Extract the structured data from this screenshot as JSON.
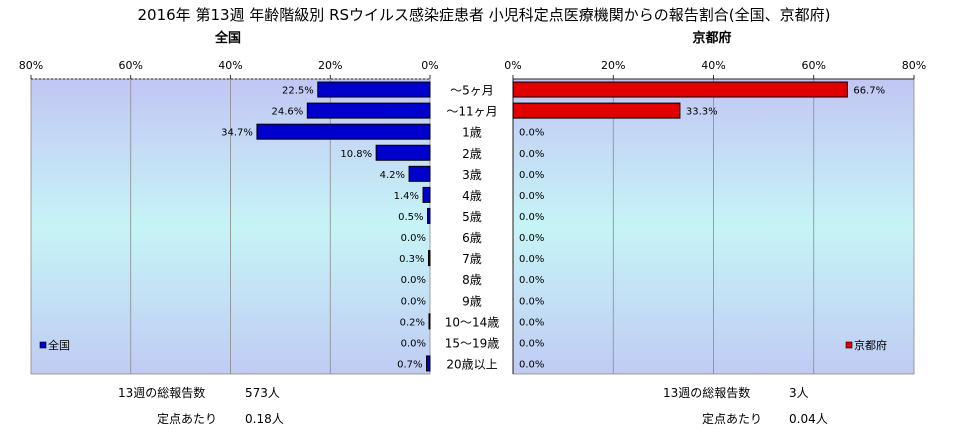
{
  "title": "2016年 第13週 年齢階級別 RSウイルス感染症患者 小児科定点医療機関からの報告割合(全国、京都府)",
  "chart_data": [
    {
      "type": "bar",
      "orientation": "horizontal",
      "title": "全国",
      "xlim": [
        0,
        80
      ],
      "x_direction": "reversed",
      "tick_labels": [
        "80%",
        "60%",
        "40%",
        "20%",
        "0%"
      ],
      "legend": "全国",
      "legend_position": "bottom-left",
      "color": "#0000CC",
      "grid": true,
      "categories": [
        "～5ヶ月",
        "～11ヶ月",
        "1歳",
        "2歳",
        "3歳",
        "4歳",
        "5歳",
        "6歳",
        "7歳",
        "8歳",
        "9歳",
        "10～14歳",
        "15～19歳",
        "20歳以上"
      ],
      "values": [
        22.5,
        24.6,
        34.7,
        10.8,
        4.2,
        1.4,
        0.5,
        0.0,
        0.3,
        0.0,
        0.0,
        0.2,
        0.0,
        0.7
      ],
      "labels": [
        "22.5%",
        "24.6%",
        "34.7%",
        "10.8%",
        "4.2%",
        "1.4%",
        "0.5%",
        "0.0%",
        "0.3%",
        "0.0%",
        "0.0%",
        "0.2%",
        "0.0%",
        "0.7%"
      ]
    },
    {
      "type": "bar",
      "orientation": "horizontal",
      "title": "京都府",
      "xlim": [
        0,
        80
      ],
      "tick_labels": [
        "0%",
        "20%",
        "40%",
        "60%",
        "80%"
      ],
      "legend": "京都府",
      "legend_position": "bottom-right",
      "color": "#E00000",
      "grid": true,
      "categories": [
        "～5ヶ月",
        "～11ヶ月",
        "1歳",
        "2歳",
        "3歳",
        "4歳",
        "5歳",
        "6歳",
        "7歳",
        "8歳",
        "9歳",
        "10～14歳",
        "15～19歳",
        "20歳以上"
      ],
      "values": [
        66.7,
        33.3,
        0,
        0,
        0,
        0,
        0,
        0,
        0,
        0,
        0,
        0,
        0,
        0
      ],
      "labels": [
        "66.7%",
        "33.3%",
        "0.0%",
        "0.0%",
        "0.0%",
        "0.0%",
        "0.0%",
        "0.0%",
        "0.0%",
        "0.0%",
        "0.0%",
        "0.0%",
        "0.0%",
        "0.0%"
      ]
    }
  ],
  "stats": {
    "national": {
      "total_label": "13週の総報告数",
      "total_value": "573人",
      "per_site_label": "定点あたり",
      "per_site_value": "0.18人"
    },
    "kyoto": {
      "total_label": "13週の総報告数",
      "total_value": "3人",
      "per_site_label": "定点あたり",
      "per_site_value": "0.04人"
    }
  }
}
